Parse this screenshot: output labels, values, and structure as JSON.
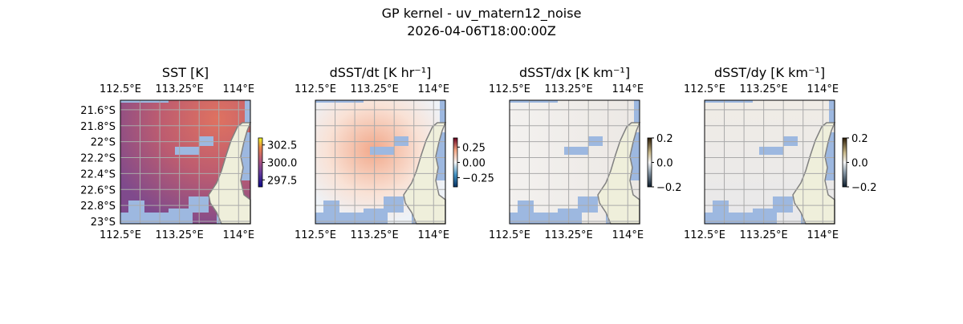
{
  "chart_data": {
    "type": "heatmap",
    "title": "GP kernel - uv_matern12_noise",
    "subtitle": "2026-04-06T18:00:00Z",
    "lon_ticks": [
      "112.5°E",
      "113.25°E",
      "114°E"
    ],
    "lon_tick_values": [
      112.5,
      113.25,
      114.0
    ],
    "lat_ticks": [
      "21.6°S",
      "21.8°S",
      "22°S",
      "22.2°S",
      "22.4°S",
      "22.6°S",
      "22.8°S",
      "23°S"
    ],
    "lat_tick_values": [
      21.6,
      21.8,
      22.0,
      22.2,
      22.4,
      22.6,
      22.8,
      23.0
    ],
    "lon_range": [
      112.5,
      114.15
    ],
    "lat_range": [
      21.48,
      23.03
    ],
    "grid": true,
    "panels": [
      {
        "title": "SST [K]",
        "colormap": "plasma",
        "vmin": 296.5,
        "vmax": 303.5,
        "cbar_ticks": [
          "302.5",
          "300.0",
          "297.5"
        ],
        "cbar_tick_values": [
          302.5,
          300.0,
          297.5
        ],
        "show_lat_labels": true
      },
      {
        "title": "dSST/dt [K hr⁻¹]",
        "colormap": "RdBu_r",
        "vmin": -0.4,
        "vmax": 0.4,
        "cbar_ticks": [
          "0.25",
          "0.00",
          "−0.25"
        ],
        "cbar_tick_values": [
          0.25,
          0.0,
          -0.25
        ],
        "show_lat_labels": false
      },
      {
        "title": "dSST/dx [K km⁻¹]",
        "colormap": "BrBG_r-like",
        "vmin": -0.2,
        "vmax": 0.2,
        "cbar_ticks": [
          "0.2",
          "0.0",
          "−0.2"
        ],
        "cbar_tick_values": [
          0.2,
          0.0,
          -0.2
        ],
        "show_lat_labels": false
      },
      {
        "title": "dSST/dy [K km⁻¹]",
        "colormap": "BrBG_r-like",
        "vmin": -0.2,
        "vmax": 0.2,
        "cbar_ticks": [
          "0.2",
          "0.0",
          "−0.2"
        ],
        "cbar_tick_values": [
          0.2,
          0.0,
          -0.2
        ],
        "show_lat_labels": false
      }
    ],
    "colors": {
      "ocean_mask": "#9db8e0",
      "land": "#efefdb",
      "coast": "#808080",
      "grid": "#aaaaaa"
    }
  }
}
